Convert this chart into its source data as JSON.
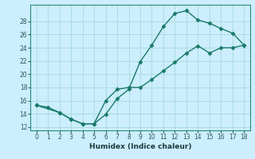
{
  "title": "",
  "xlabel": "Humidex (Indice chaleur)",
  "bg_color": "#cceeff",
  "line_color": "#1a7a6a",
  "line1_x": [
    0,
    1,
    2,
    3,
    4,
    5,
    6,
    7,
    8,
    9,
    10,
    11,
    12,
    13,
    14,
    15,
    16,
    17,
    18
  ],
  "line1_y": [
    15.3,
    15.0,
    14.2,
    13.2,
    12.5,
    12.5,
    13.9,
    16.3,
    17.7,
    21.9,
    24.4,
    27.2,
    29.2,
    29.6,
    28.2,
    27.7,
    26.9,
    26.2,
    24.4
  ],
  "line2_x": [
    0,
    2,
    3,
    4,
    5,
    6,
    7,
    8,
    9,
    10,
    11,
    12,
    13,
    14,
    15,
    16,
    17,
    18
  ],
  "line2_y": [
    15.3,
    14.2,
    13.2,
    12.5,
    12.5,
    16.0,
    17.7,
    18.0,
    18.0,
    19.2,
    20.5,
    21.8,
    23.2,
    24.3,
    23.2,
    24.0,
    24.0,
    24.4
  ],
  "xlim": [
    -0.5,
    18.5
  ],
  "ylim": [
    11.5,
    30.5
  ],
  "xticks": [
    0,
    1,
    2,
    3,
    4,
    5,
    6,
    7,
    8,
    9,
    10,
    11,
    12,
    13,
    14,
    15,
    16,
    17,
    18
  ],
  "yticks": [
    12,
    14,
    16,
    18,
    20,
    22,
    24,
    26,
    28
  ],
  "grid_color": "#aadddd",
  "marker": "D",
  "markersize": 2.5,
  "linewidth": 1.0,
  "tick_labelsize": 5.5,
  "xlabel_fontsize": 6.5
}
